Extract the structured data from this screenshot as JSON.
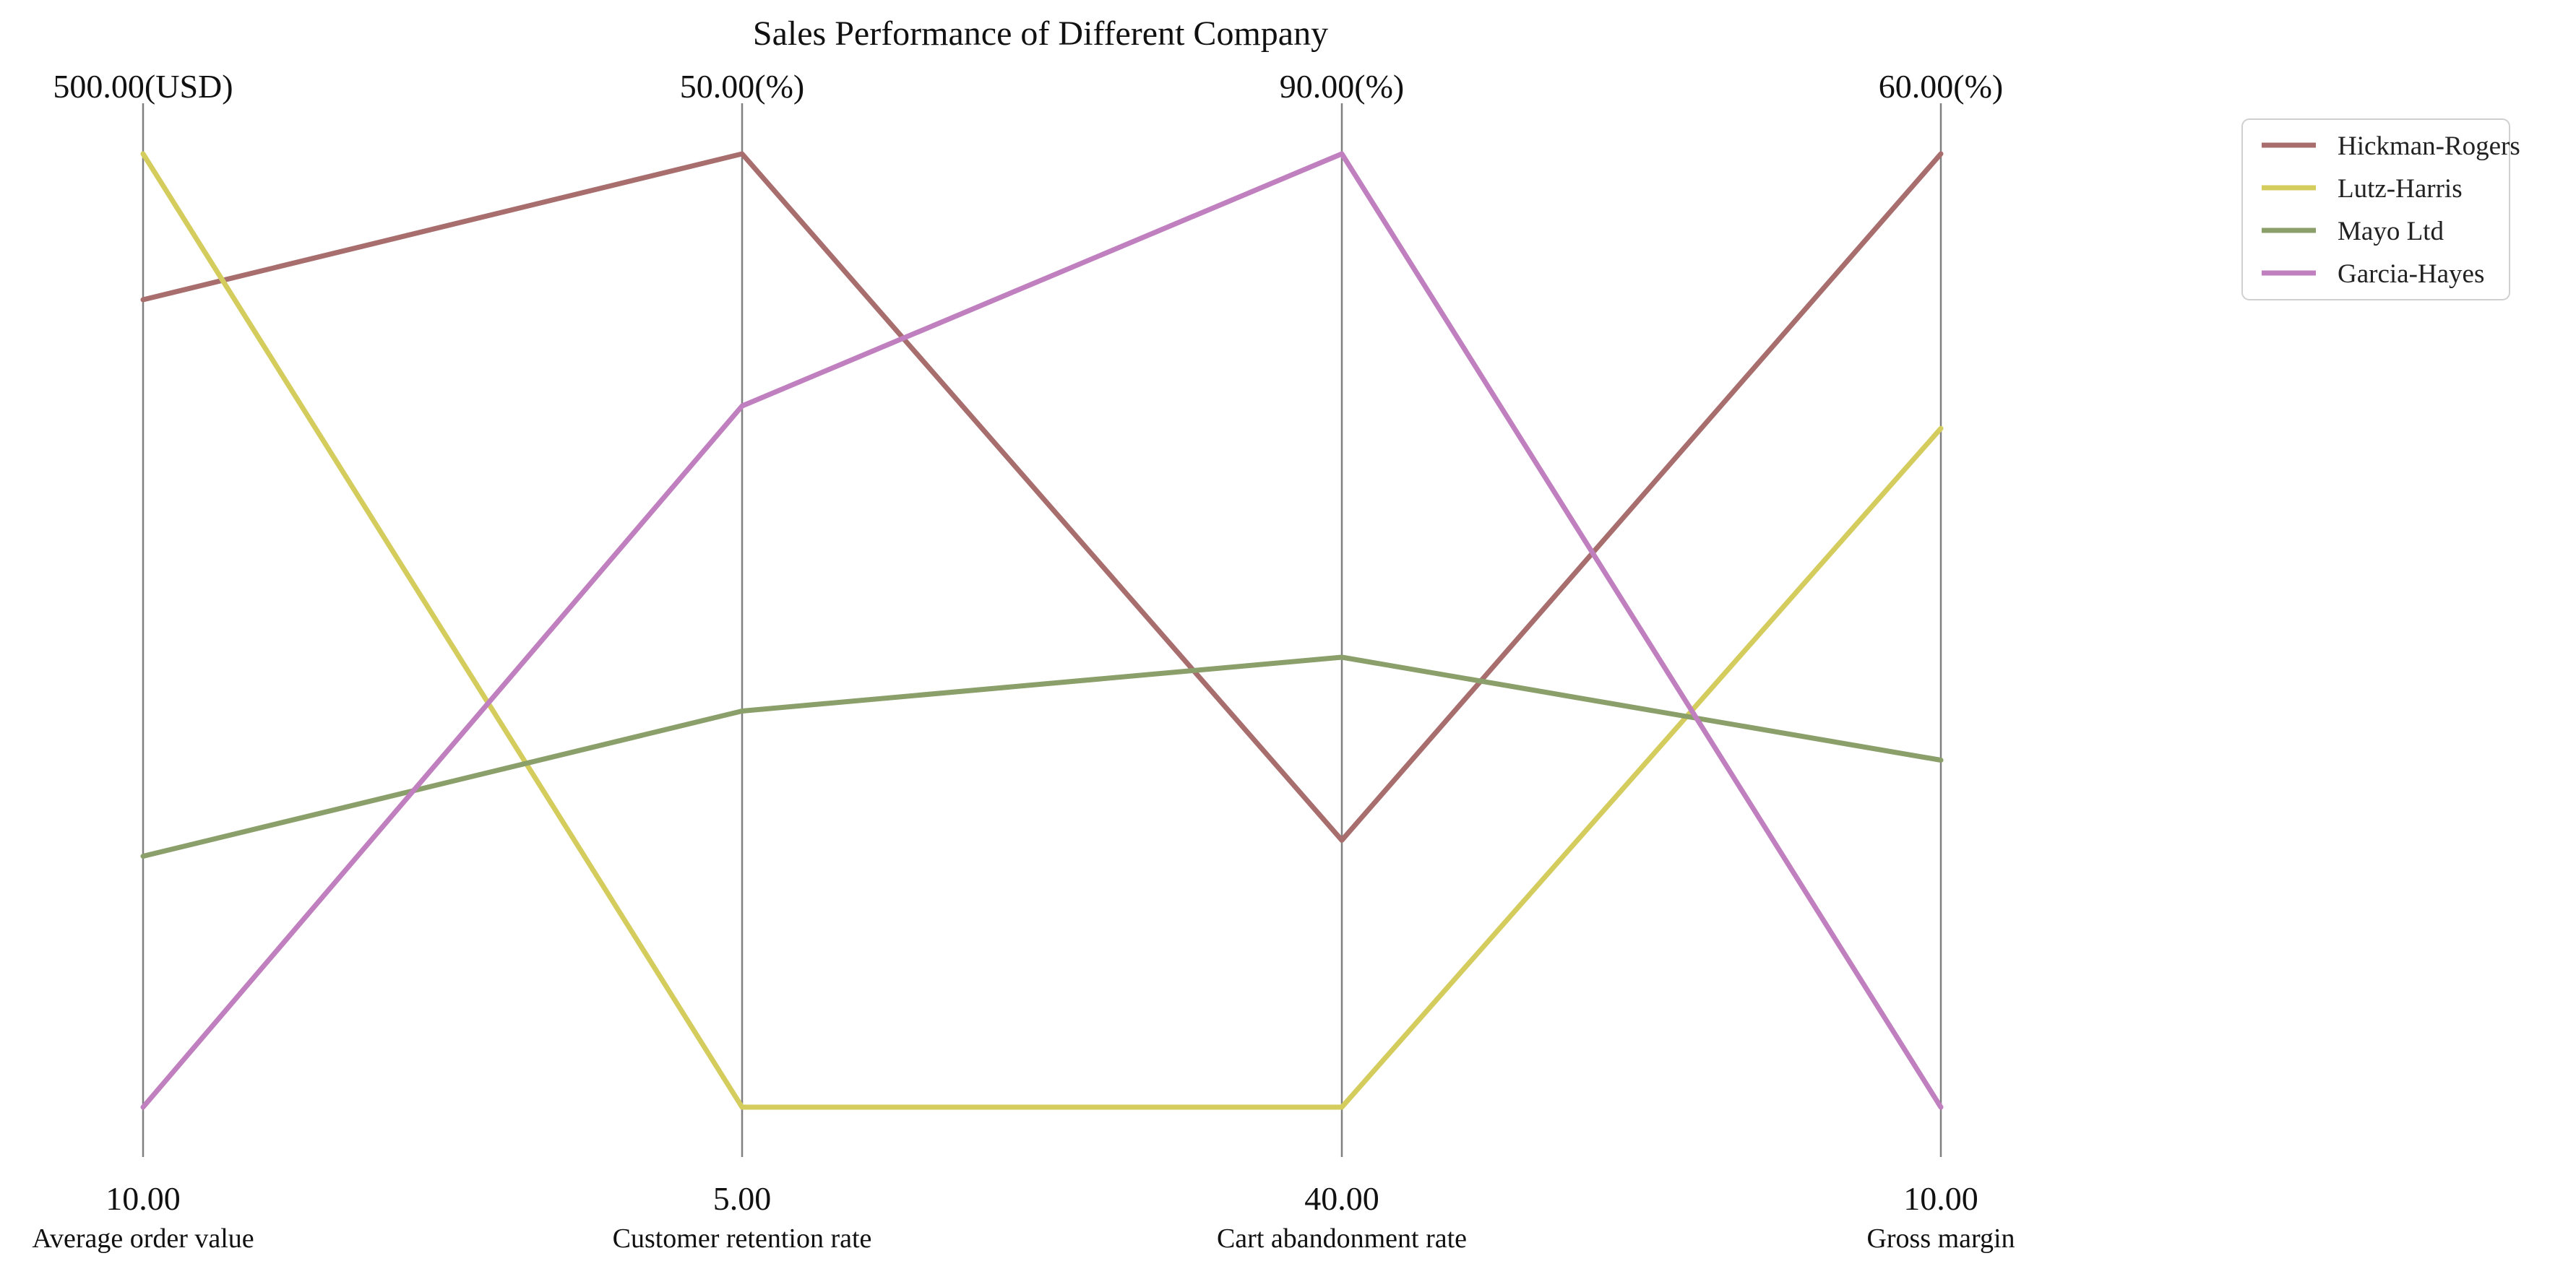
{
  "chart_data": {
    "type": "parallel_coordinates",
    "title": "Sales Performance of Different Company",
    "axes": [
      {
        "name": "Average order value",
        "min": 10.0,
        "max": 500.0,
        "min_label": "10.00",
        "max_label": "500.00(USD)"
      },
      {
        "name": "Customer retention rate",
        "min": 5.0,
        "max": 50.0,
        "min_label": "5.00",
        "max_label": "50.00(%)"
      },
      {
        "name": "Cart abandonment rate",
        "min": 40.0,
        "max": 90.0,
        "min_label": "40.00",
        "max_label": "90.00(%)"
      },
      {
        "name": "Gross margin",
        "min": 10.0,
        "max": 60.0,
        "min_label": "10.00",
        "max_label": "60.00(%)"
      }
    ],
    "series": [
      {
        "name": "Hickman-Rogers",
        "color": "#A86E6E",
        "values": [
          425.0,
          50.0,
          54.0,
          60.0
        ]
      },
      {
        "name": "Lutz-Harris",
        "color": "#D4CD5E",
        "values": [
          500.0,
          5.0,
          40.0,
          45.6
        ]
      },
      {
        "name": "Mayo Ltd",
        "color": "#8A9F6A",
        "values": [
          139.0,
          23.7,
          63.6,
          28.2
        ]
      },
      {
        "name": "Garcia-Hayes",
        "color": "#C07FBE",
        "values": [
          10.0,
          38.1,
          90.0,
          10.0
        ]
      }
    ],
    "axis_line_color": "#808080",
    "legend_position": "top-right",
    "grid": false
  }
}
